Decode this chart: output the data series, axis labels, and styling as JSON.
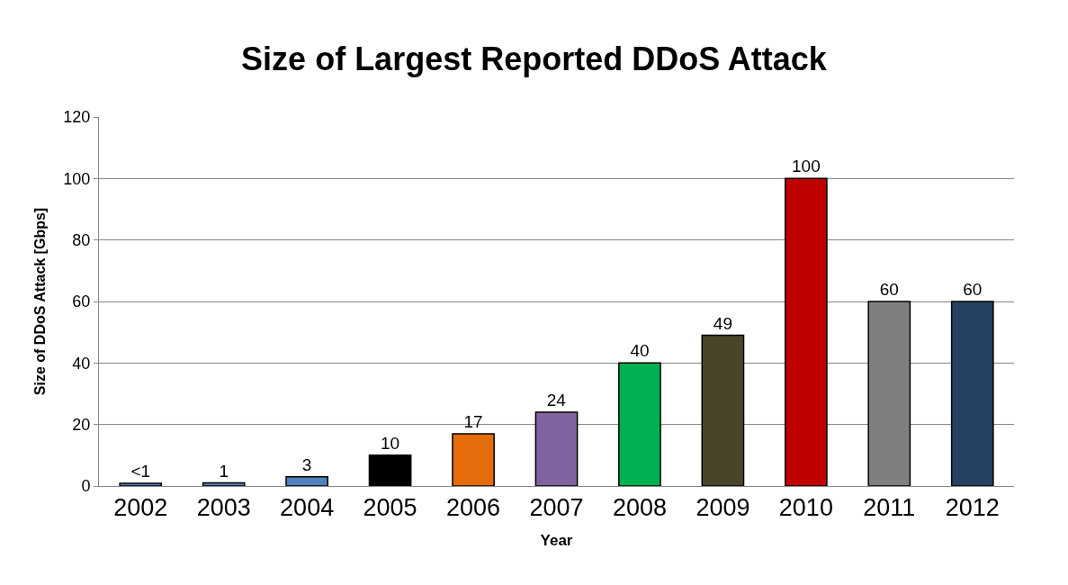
{
  "chart_data": {
    "type": "bar",
    "title": "Size of Largest Reported DDoS Attack",
    "xlabel": "Year",
    "ylabel": "Size of DDoS Attack [Gbps]",
    "categories": [
      "2002",
      "2003",
      "2004",
      "2005",
      "2006",
      "2007",
      "2008",
      "2009",
      "2010",
      "2011",
      "2012"
    ],
    "values": [
      0.9,
      1,
      3,
      10,
      17,
      24,
      40,
      49,
      100,
      60,
      60
    ],
    "value_labels": [
      "<1",
      "1",
      "3",
      "10",
      "17",
      "24",
      "40",
      "49",
      "100",
      "60",
      "60"
    ],
    "colors": [
      "#4f81bd",
      "#4f81bd",
      "#4f81bd",
      "#000000",
      "#e46c0a",
      "#8064a2",
      "#00b050",
      "#4a452a",
      "#c00000",
      "#7f7f7f",
      "#254061"
    ],
    "ylim": [
      0,
      120
    ],
    "yticks": [
      0,
      20,
      40,
      60,
      80,
      100,
      120
    ],
    "grid": "y",
    "legend": false
  }
}
